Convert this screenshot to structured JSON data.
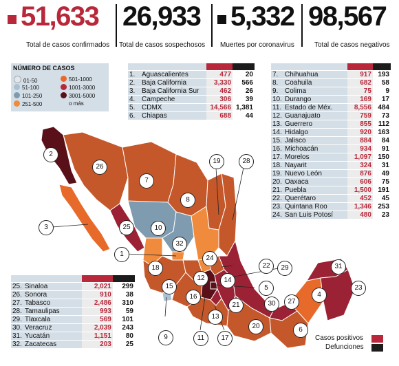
{
  "stats": [
    {
      "value": "51,633",
      "label": "Total de casos confirmados",
      "marker": "red-square",
      "color": "#b8283a"
    },
    {
      "value": "26,933",
      "label": "Total de casos sospechosos",
      "marker": "",
      "color": "#111111"
    },
    {
      "value": "5,332",
      "label": "Muertes por coronavirus",
      "marker": "black-square",
      "color": "#111111"
    },
    {
      "value": "98,567",
      "label": "Total de casos negativos",
      "marker": "",
      "color": "#111111"
    }
  ],
  "legend": {
    "title": "NÚMERO DE CASOS",
    "items": [
      {
        "label": "01-50",
        "color": "#dfe8ee"
      },
      {
        "label": "501-1000",
        "color": "#e86a2a"
      },
      {
        "label": "51-100",
        "color": "#a9c1d3"
      },
      {
        "label": "1001-3000",
        "color": "#b8283a"
      },
      {
        "label": "101-250",
        "color": "#7f9bb0"
      },
      {
        "label": "3001-5000",
        "color": "#5a1018"
      },
      {
        "label": "251-500",
        "color": "#f08a3c"
      },
      {
        "label": "o más",
        "color": "#ffffff"
      }
    ]
  },
  "tables": {
    "t1": [
      {
        "n": "1.",
        "state": "Aguascalientes",
        "pos": "477",
        "def": "20"
      },
      {
        "n": "2.",
        "state": "Baja California",
        "pos": "3,330",
        "def": "566"
      },
      {
        "n": "3.",
        "state": "Baja California Sur",
        "pos": "462",
        "def": "26"
      },
      {
        "n": "4.",
        "state": "Campeche",
        "pos": "306",
        "def": "39"
      },
      {
        "n": "5.",
        "state": "CDMX",
        "pos": "14,566",
        "def": "1,381"
      },
      {
        "n": "6.",
        "state": "Chiapas",
        "pos": "688",
        "def": "44"
      }
    ],
    "t2": [
      {
        "n": "7.",
        "state": "Chihuahua",
        "pos": "917",
        "def": "193"
      },
      {
        "n": "8.",
        "state": "Coahuila",
        "pos": "682",
        "def": "58"
      },
      {
        "n": "9.",
        "state": "Colima",
        "pos": "75",
        "def": "9"
      },
      {
        "n": "10.",
        "state": "Durango",
        "pos": "169",
        "def": "17"
      },
      {
        "n": "11.",
        "state": "Estado de Méx.",
        "pos": "8,556",
        "def": "484"
      },
      {
        "n": "12.",
        "state": "Guanajuato",
        "pos": "759",
        "def": "73"
      },
      {
        "n": "13.",
        "state": "Guerrero",
        "pos": "855",
        "def": "112"
      },
      {
        "n": "14.",
        "state": "Hidalgo",
        "pos": "920",
        "def": "163"
      },
      {
        "n": "15.",
        "state": "Jalisco",
        "pos": "884",
        "def": "84"
      },
      {
        "n": "16.",
        "state": "Michoacán",
        "pos": "934",
        "def": "91"
      },
      {
        "n": "17.",
        "state": "Morelos",
        "pos": "1,097",
        "def": "150"
      },
      {
        "n": "18.",
        "state": "Nayarit",
        "pos": "324",
        "def": "31"
      },
      {
        "n": "19.",
        "state": "Nuevo León",
        "pos": "876",
        "def": "49"
      },
      {
        "n": "20.",
        "state": "Oaxaca",
        "pos": "606",
        "def": "75"
      },
      {
        "n": "21.",
        "state": "Puebla",
        "pos": "1,500",
        "def": "191"
      },
      {
        "n": "22.",
        "state": "Querétaro",
        "pos": "452",
        "def": "45"
      },
      {
        "n": "23.",
        "state": "Quintana Roo",
        "pos": "1,346",
        "def": "253"
      },
      {
        "n": "24.",
        "state": "San Luis Potosí",
        "pos": "480",
        "def": "23"
      }
    ],
    "t3": [
      {
        "n": "25.",
        "state": "Sinaloa",
        "pos": "2,021",
        "def": "299"
      },
      {
        "n": "26.",
        "state": "Sonora",
        "pos": "910",
        "def": "38"
      },
      {
        "n": "27.",
        "state": "Tabasco",
        "pos": "2,486",
        "def": "310"
      },
      {
        "n": "28.",
        "state": "Tamaulipas",
        "pos": "993",
        "def": "59"
      },
      {
        "n": "29.",
        "state": "Tlaxcala",
        "pos": "569",
        "def": "101"
      },
      {
        "n": "30.",
        "state": "Veracruz",
        "pos": "2,039",
        "def": "243"
      },
      {
        "n": "31.",
        "state": "Yucatán",
        "pos": "1,151",
        "def": "80"
      },
      {
        "n": "32.",
        "state": "Zacatecas",
        "pos": "203",
        "def": "25"
      }
    ]
  },
  "map_labels": [
    "1",
    "2",
    "3",
    "4",
    "5",
    "6",
    "7",
    "8",
    "9",
    "10",
    "11",
    "12",
    "13",
    "14",
    "15",
    "16",
    "17",
    "18",
    "19",
    "20",
    "21",
    "22",
    "23",
    "24",
    "25",
    "26",
    "27",
    "28",
    "29",
    "30",
    "31",
    "32"
  ],
  "key": {
    "positives": "Casos positivos",
    "deaths": "Defunciones",
    "positives_color": "#b8283a",
    "deaths_color": "#1c1c1c"
  }
}
